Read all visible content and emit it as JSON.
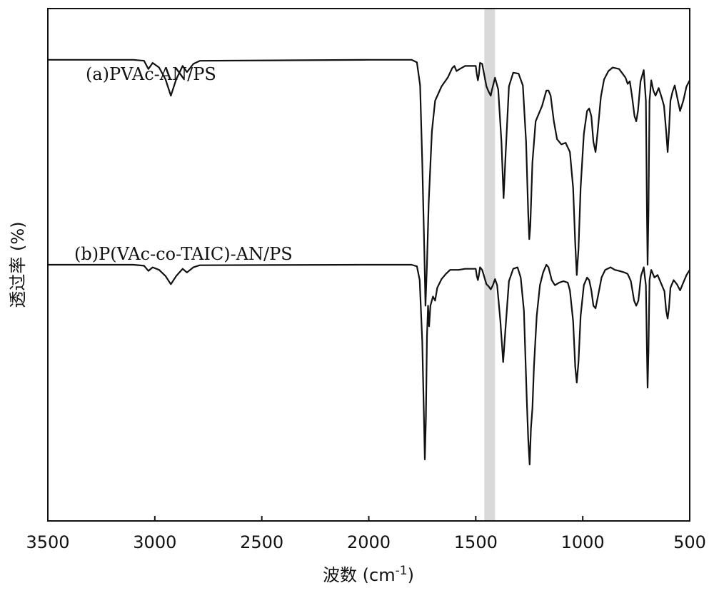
{
  "chart_data": {
    "type": "line",
    "xlabel": "波数 (cm",
    "xlabel_sup": "-1",
    "xlabel_close": ")",
    "ylabel": "透过率 (%)",
    "xlim": [
      3500,
      500
    ],
    "ylim": [
      0,
      1
    ],
    "x_ticks": [
      "3500",
      "3000",
      "2500",
      "2000",
      "1500",
      "1000",
      "500"
    ],
    "x_tick_values": [
      3500,
      3000,
      2500,
      2000,
      1500,
      1000,
      500
    ],
    "y_ticks_shown": false,
    "grid": false,
    "highlight_band": [
      1460,
      1410
    ],
    "highlight_color": "#d9d9d9",
    "line_color": "#111111",
    "series": [
      {
        "name": "(a)PVAc-AN/PS",
        "points": [
          [
            3500,
            0.9
          ],
          [
            3100,
            0.9
          ],
          [
            3050,
            0.898
          ],
          [
            3030,
            0.882
          ],
          [
            3010,
            0.894
          ],
          [
            2980,
            0.885
          ],
          [
            2950,
            0.862
          ],
          [
            2925,
            0.83
          ],
          [
            2900,
            0.862
          ],
          [
            2870,
            0.888
          ],
          [
            2850,
            0.876
          ],
          [
            2820,
            0.892
          ],
          [
            2790,
            0.898
          ],
          [
            2000,
            0.9
          ],
          [
            1800,
            0.9
          ],
          [
            1775,
            0.895
          ],
          [
            1760,
            0.85
          ],
          [
            1750,
            0.7
          ],
          [
            1740,
            0.52
          ],
          [
            1735,
            0.42
          ],
          [
            1728,
            0.5
          ],
          [
            1720,
            0.62
          ],
          [
            1705,
            0.76
          ],
          [
            1690,
            0.82
          ],
          [
            1660,
            0.848
          ],
          [
            1630,
            0.866
          ],
          [
            1610,
            0.884
          ],
          [
            1600,
            0.888
          ],
          [
            1590,
            0.878
          ],
          [
            1575,
            0.882
          ],
          [
            1550,
            0.888
          ],
          [
            1500,
            0.888
          ],
          [
            1495,
            0.872
          ],
          [
            1490,
            0.86
          ],
          [
            1485,
            0.872
          ],
          [
            1480,
            0.894
          ],
          [
            1470,
            0.892
          ],
          [
            1450,
            0.848
          ],
          [
            1440,
            0.838
          ],
          [
            1430,
            0.83
          ],
          [
            1425,
            0.84
          ],
          [
            1410,
            0.865
          ],
          [
            1395,
            0.842
          ],
          [
            1380,
            0.74
          ],
          [
            1370,
            0.63
          ],
          [
            1360,
            0.72
          ],
          [
            1345,
            0.848
          ],
          [
            1325,
            0.875
          ],
          [
            1300,
            0.873
          ],
          [
            1280,
            0.85
          ],
          [
            1265,
            0.74
          ],
          [
            1255,
            0.6
          ],
          [
            1250,
            0.55
          ],
          [
            1245,
            0.575
          ],
          [
            1235,
            0.7
          ],
          [
            1220,
            0.78
          ],
          [
            1205,
            0.795
          ],
          [
            1190,
            0.81
          ],
          [
            1170,
            0.84
          ],
          [
            1160,
            0.84
          ],
          [
            1150,
            0.83
          ],
          [
            1135,
            0.78
          ],
          [
            1120,
            0.745
          ],
          [
            1100,
            0.735
          ],
          [
            1080,
            0.738
          ],
          [
            1060,
            0.72
          ],
          [
            1045,
            0.65
          ],
          [
            1035,
            0.54
          ],
          [
            1028,
            0.48
          ],
          [
            1020,
            0.53
          ],
          [
            1010,
            0.65
          ],
          [
            995,
            0.755
          ],
          [
            980,
            0.8
          ],
          [
            970,
            0.805
          ],
          [
            960,
            0.79
          ],
          [
            950,
            0.74
          ],
          [
            940,
            0.72
          ],
          [
            930,
            0.76
          ],
          [
            915,
            0.828
          ],
          [
            900,
            0.862
          ],
          [
            880,
            0.878
          ],
          [
            860,
            0.885
          ],
          [
            830,
            0.882
          ],
          [
            800,
            0.865
          ],
          [
            790,
            0.853
          ],
          [
            780,
            0.858
          ],
          [
            770,
            0.83
          ],
          [
            758,
            0.79
          ],
          [
            750,
            0.78
          ],
          [
            742,
            0.8
          ],
          [
            730,
            0.858
          ],
          [
            715,
            0.88
          ],
          [
            705,
            0.82
          ],
          [
            700,
            0.6
          ],
          [
            697,
            0.5
          ],
          [
            693,
            0.6
          ],
          [
            688,
            0.82
          ],
          [
            680,
            0.86
          ],
          [
            670,
            0.84
          ],
          [
            660,
            0.83
          ],
          [
            645,
            0.845
          ],
          [
            630,
            0.825
          ],
          [
            620,
            0.81
          ],
          [
            610,
            0.76
          ],
          [
            603,
            0.72
          ],
          [
            597,
            0.76
          ],
          [
            590,
            0.82
          ],
          [
            580,
            0.838
          ],
          [
            570,
            0.85
          ],
          [
            560,
            0.83
          ],
          [
            545,
            0.8
          ],
          [
            530,
            0.82
          ],
          [
            515,
            0.848
          ],
          [
            500,
            0.86
          ]
        ]
      },
      {
        "name": "(b)P(VAc-co-TAIC)-AN/PS",
        "points": [
          [
            3500,
            0.5
          ],
          [
            3100,
            0.5
          ],
          [
            3050,
            0.498
          ],
          [
            3030,
            0.488
          ],
          [
            3010,
            0.495
          ],
          [
            2980,
            0.49
          ],
          [
            2950,
            0.478
          ],
          [
            2925,
            0.462
          ],
          [
            2900,
            0.478
          ],
          [
            2870,
            0.492
          ],
          [
            2850,
            0.485
          ],
          [
            2820,
            0.495
          ],
          [
            2790,
            0.499
          ],
          [
            2000,
            0.5
          ],
          [
            1800,
            0.5
          ],
          [
            1775,
            0.497
          ],
          [
            1762,
            0.47
          ],
          [
            1750,
            0.35
          ],
          [
            1742,
            0.2
          ],
          [
            1738,
            0.12
          ],
          [
            1733,
            0.2
          ],
          [
            1728,
            0.36
          ],
          [
            1723,
            0.42
          ],
          [
            1718,
            0.38
          ],
          [
            1712,
            0.42
          ],
          [
            1700,
            0.438
          ],
          [
            1690,
            0.43
          ],
          [
            1680,
            0.455
          ],
          [
            1660,
            0.472
          ],
          [
            1640,
            0.482
          ],
          [
            1620,
            0.49
          ],
          [
            1580,
            0.49
          ],
          [
            1550,
            0.492
          ],
          [
            1500,
            0.492
          ],
          [
            1495,
            0.478
          ],
          [
            1490,
            0.47
          ],
          [
            1485,
            0.48
          ],
          [
            1480,
            0.495
          ],
          [
            1470,
            0.49
          ],
          [
            1450,
            0.462
          ],
          [
            1440,
            0.458
          ],
          [
            1430,
            0.452
          ],
          [
            1420,
            0.46
          ],
          [
            1410,
            0.472
          ],
          [
            1400,
            0.46
          ],
          [
            1385,
            0.39
          ],
          [
            1372,
            0.31
          ],
          [
            1362,
            0.37
          ],
          [
            1345,
            0.468
          ],
          [
            1325,
            0.492
          ],
          [
            1305,
            0.495
          ],
          [
            1290,
            0.475
          ],
          [
            1275,
            0.41
          ],
          [
            1262,
            0.24
          ],
          [
            1255,
            0.16
          ],
          [
            1248,
            0.11
          ],
          [
            1242,
            0.18
          ],
          [
            1235,
            0.22
          ],
          [
            1228,
            0.3
          ],
          [
            1215,
            0.4
          ],
          [
            1200,
            0.46
          ],
          [
            1185,
            0.485
          ],
          [
            1170,
            0.5
          ],
          [
            1160,
            0.495
          ],
          [
            1145,
            0.47
          ],
          [
            1130,
            0.46
          ],
          [
            1110,
            0.465
          ],
          [
            1090,
            0.468
          ],
          [
            1070,
            0.465
          ],
          [
            1060,
            0.45
          ],
          [
            1045,
            0.39
          ],
          [
            1035,
            0.3
          ],
          [
            1028,
            0.27
          ],
          [
            1020,
            0.31
          ],
          [
            1010,
            0.4
          ],
          [
            995,
            0.46
          ],
          [
            980,
            0.475
          ],
          [
            970,
            0.47
          ],
          [
            960,
            0.45
          ],
          [
            950,
            0.42
          ],
          [
            940,
            0.415
          ],
          [
            928,
            0.44
          ],
          [
            912,
            0.475
          ],
          [
            895,
            0.49
          ],
          [
            870,
            0.495
          ],
          [
            850,
            0.49
          ],
          [
            830,
            0.488
          ],
          [
            805,
            0.485
          ],
          [
            790,
            0.482
          ],
          [
            775,
            0.468
          ],
          [
            760,
            0.43
          ],
          [
            750,
            0.42
          ],
          [
            740,
            0.43
          ],
          [
            728,
            0.478
          ],
          [
            715,
            0.495
          ],
          [
            705,
            0.46
          ],
          [
            700,
            0.33
          ],
          [
            697,
            0.26
          ],
          [
            693,
            0.33
          ],
          [
            688,
            0.47
          ],
          [
            680,
            0.49
          ],
          [
            665,
            0.475
          ],
          [
            650,
            0.48
          ],
          [
            630,
            0.46
          ],
          [
            618,
            0.448
          ],
          [
            610,
            0.41
          ],
          [
            603,
            0.395
          ],
          [
            597,
            0.415
          ],
          [
            590,
            0.455
          ],
          [
            575,
            0.47
          ],
          [
            560,
            0.462
          ],
          [
            545,
            0.45
          ],
          [
            530,
            0.465
          ],
          [
            515,
            0.48
          ],
          [
            500,
            0.49
          ]
        ]
      }
    ]
  }
}
